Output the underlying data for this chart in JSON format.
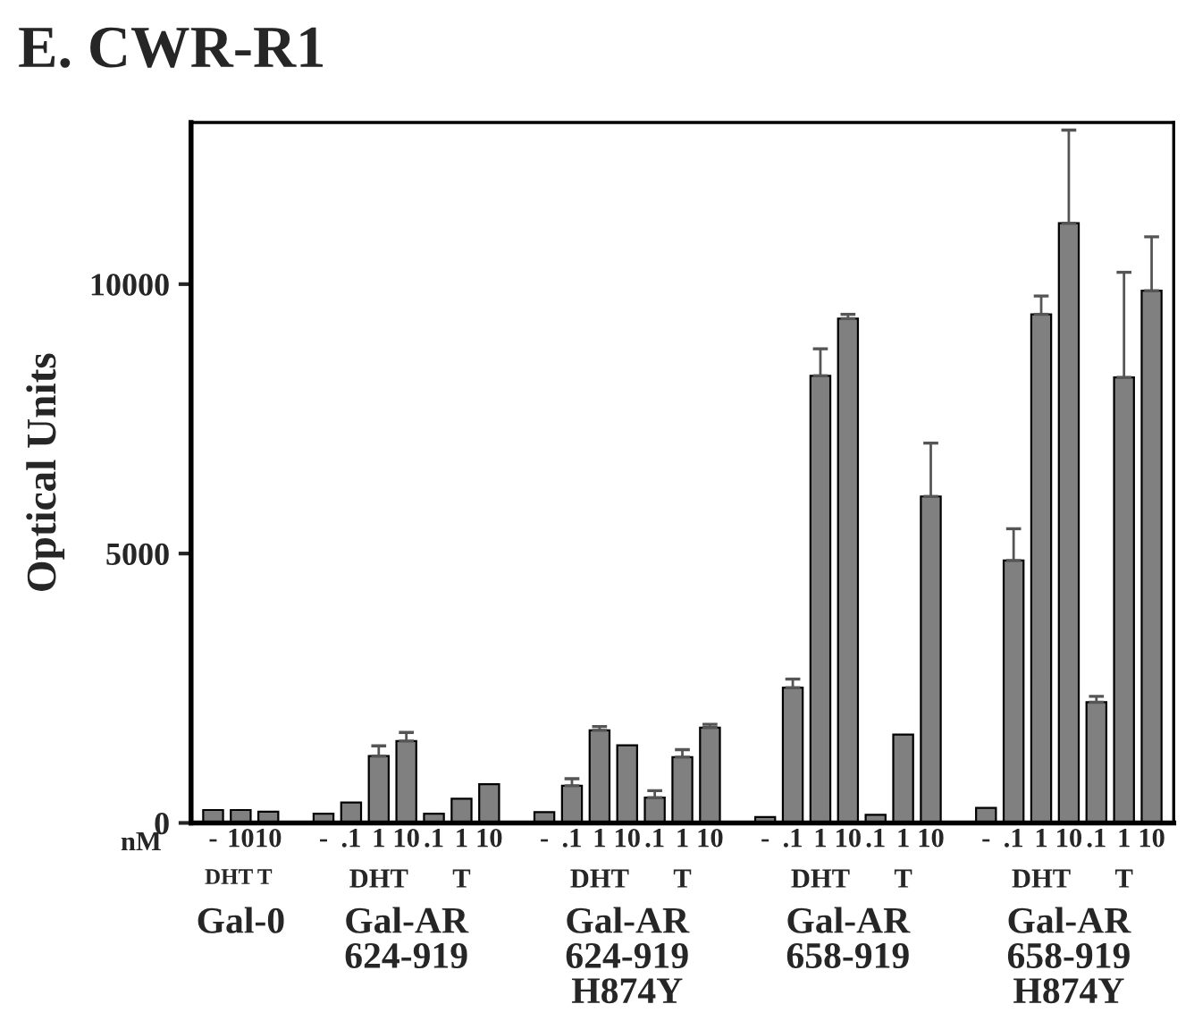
{
  "chart_data": {
    "type": "bar",
    "title": "E. CWR-R1",
    "ylabel": "Optical Units",
    "categories": [
      "-",
      "10",
      "10",
      null,
      "-",
      ".1",
      "1",
      "10",
      ".1",
      "1",
      "10",
      null,
      "-",
      ".1",
      "1",
      "10",
      ".1",
      "1",
      "10",
      null,
      "-",
      ".1",
      "1",
      "10",
      ".1",
      "1",
      "10",
      null,
      "-",
      ".1",
      "1",
      "10",
      ".1",
      "1",
      "10"
    ],
    "values": [
      240,
      240,
      210,
      null,
      170,
      380,
      1240,
      1520,
      170,
      450,
      720,
      null,
      200,
      690,
      1720,
      1440,
      470,
      1220,
      1770,
      null,
      110,
      2510,
      8300,
      9360,
      150,
      1640,
      6060,
      null,
      280,
      4870,
      9440,
      11130,
      2240,
      8270,
      9880
    ],
    "errors": [
      null,
      null,
      null,
      null,
      null,
      null,
      [
        1240,
        1430
      ],
      [
        1520,
        1680
      ],
      null,
      null,
      null,
      null,
      null,
      [
        690,
        820
      ],
      [
        1720,
        1790
      ],
      null,
      [
        470,
        600
      ],
      [
        1220,
        1360
      ],
      [
        1770,
        1830
      ],
      null,
      null,
      [
        2510,
        2670
      ],
      [
        8300,
        8800
      ],
      [
        9360,
        9440
      ],
      null,
      null,
      [
        6060,
        7050
      ],
      null,
      null,
      [
        4870,
        5460
      ],
      [
        9440,
        9780
      ],
      [
        11130,
        12860
      ],
      [
        2240,
        2350
      ],
      [
        8270,
        10220
      ],
      [
        9880,
        10880
      ]
    ],
    "color": "#808080",
    "ylim": [
      0,
      13000
    ],
    "yticks": [
      0,
      5000,
      10000
    ],
    "grid": false,
    "annotations": [
      "nM",
      "DHT",
      "T",
      "Gal-0",
      "DHT",
      "T",
      "Gal-AR\n624-919",
      "DHT",
      "T",
      "Gal-AR\n624-919\nH874Y",
      "DHT",
      "T",
      "Gal-AR\n658-919",
      "DHT",
      "T",
      "Gal-AR\n658-919\nH874Y"
    ]
  }
}
